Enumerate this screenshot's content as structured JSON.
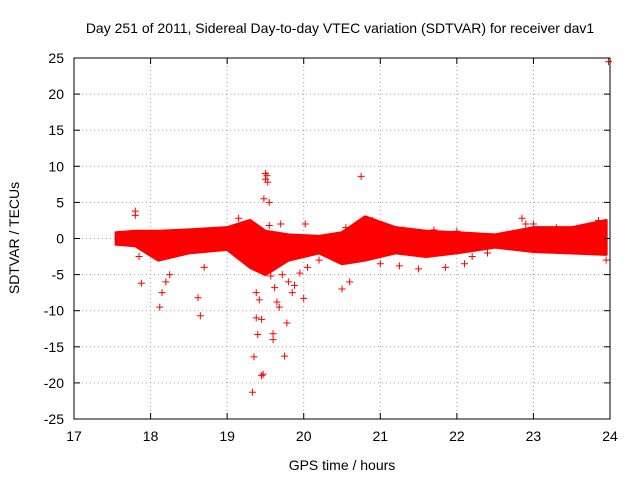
{
  "chart_data": {
    "type": "scatter",
    "title": "Day 251 of 2011, Sidereal Day-to-day VTEC variation (SDTVAR) for receiver dav1",
    "xlabel": "GPS time / hours",
    "ylabel": "SDTVAR / TECUs",
    "xlim": [
      17,
      24
    ],
    "ylim": [
      -25,
      25
    ],
    "xticks": [
      17,
      18,
      19,
      20,
      21,
      22,
      23,
      24
    ],
    "yticks": [
      -25,
      -20,
      -15,
      -10,
      -5,
      0,
      5,
      10,
      15,
      20,
      25
    ],
    "grid": true,
    "marker": "+",
    "series_color": "#ff0000",
    "band": {
      "x": [
        17.55,
        17.8,
        18.1,
        18.5,
        19.0,
        19.3,
        19.5,
        19.8,
        20.2,
        20.5,
        20.8,
        21.2,
        21.6,
        22.0,
        22.5,
        23.0,
        23.5,
        23.95
      ],
      "upper": [
        0.8,
        1.0,
        1.0,
        1.2,
        1.5,
        2.5,
        1.0,
        0.5,
        0.3,
        0.8,
        3.0,
        1.5,
        1.0,
        0.8,
        0.5,
        1.5,
        1.5,
        2.5
      ],
      "lower": [
        -0.8,
        -1.0,
        -3.0,
        -2.0,
        -1.5,
        -4.0,
        -5.0,
        -3.0,
        -2.0,
        -3.5,
        -3.0,
        -2.0,
        -2.5,
        -2.0,
        -1.2,
        -1.8,
        -2.0,
        -2.2
      ]
    },
    "points": [
      {
        "x": 17.8,
        "y": 3.8
      },
      {
        "x": 17.8,
        "y": 3.2
      },
      {
        "x": 17.85,
        "y": -2.5
      },
      {
        "x": 17.88,
        "y": -6.2
      },
      {
        "x": 18.12,
        "y": -9.5
      },
      {
        "x": 18.15,
        "y": -7.5
      },
      {
        "x": 18.2,
        "y": -6.0
      },
      {
        "x": 18.25,
        "y": -5.0
      },
      {
        "x": 18.62,
        "y": -8.2
      },
      {
        "x": 18.65,
        "y": -10.7
      },
      {
        "x": 18.7,
        "y": -4.0
      },
      {
        "x": 19.15,
        "y": 2.8
      },
      {
        "x": 19.33,
        "y": -21.3
      },
      {
        "x": 19.35,
        "y": -16.4
      },
      {
        "x": 19.38,
        "y": -11.0
      },
      {
        "x": 19.38,
        "y": -7.5
      },
      {
        "x": 19.4,
        "y": -13.3
      },
      {
        "x": 19.42,
        "y": -8.5
      },
      {
        "x": 19.45,
        "y": -11.2
      },
      {
        "x": 19.45,
        "y": -19.0
      },
      {
        "x": 19.47,
        "y": -18.8
      },
      {
        "x": 19.48,
        "y": 5.5
      },
      {
        "x": 19.5,
        "y": 9.0
      },
      {
        "x": 19.5,
        "y": 8.2
      },
      {
        "x": 19.52,
        "y": 8.7
      },
      {
        "x": 19.53,
        "y": 7.8
      },
      {
        "x": 19.55,
        "y": 5.0
      },
      {
        "x": 19.55,
        "y": 1.8
      },
      {
        "x": 19.57,
        "y": -5.2
      },
      {
        "x": 19.6,
        "y": -13.2
      },
      {
        "x": 19.6,
        "y": -14.0
      },
      {
        "x": 19.62,
        "y": -6.8
      },
      {
        "x": 19.65,
        "y": -3.5
      },
      {
        "x": 19.65,
        "y": -8.8
      },
      {
        "x": 19.68,
        "y": -9.5
      },
      {
        "x": 19.7,
        "y": 2.0
      },
      {
        "x": 19.72,
        "y": -5.0
      },
      {
        "x": 19.75,
        "y": -16.3
      },
      {
        "x": 19.78,
        "y": -11.7
      },
      {
        "x": 19.8,
        "y": -6.0
      },
      {
        "x": 19.85,
        "y": -7.5
      },
      {
        "x": 19.88,
        "y": -6.5
      },
      {
        "x": 19.95,
        "y": -4.8
      },
      {
        "x": 20.0,
        "y": -8.3
      },
      {
        "x": 20.02,
        "y": 2.0
      },
      {
        "x": 20.05,
        "y": -4.0
      },
      {
        "x": 20.2,
        "y": -3.0
      },
      {
        "x": 20.5,
        "y": -7.0
      },
      {
        "x": 20.55,
        "y": 1.5
      },
      {
        "x": 20.6,
        "y": -6.0
      },
      {
        "x": 20.75,
        "y": 8.6
      },
      {
        "x": 20.75,
        "y": -2.0
      },
      {
        "x": 20.9,
        "y": 2.5
      },
      {
        "x": 21.0,
        "y": -3.5
      },
      {
        "x": 21.25,
        "y": -3.8
      },
      {
        "x": 21.3,
        "y": 1.2
      },
      {
        "x": 21.5,
        "y": -4.2
      },
      {
        "x": 21.7,
        "y": 1.2
      },
      {
        "x": 21.85,
        "y": -4.0
      },
      {
        "x": 22.0,
        "y": 1.0
      },
      {
        "x": 22.1,
        "y": -3.5
      },
      {
        "x": 22.2,
        "y": -2.5
      },
      {
        "x": 22.4,
        "y": -2.0
      },
      {
        "x": 22.85,
        "y": 2.8
      },
      {
        "x": 22.9,
        "y": 2.0
      },
      {
        "x": 23.0,
        "y": 2.0
      },
      {
        "x": 23.3,
        "y": 1.5
      },
      {
        "x": 23.6,
        "y": 1.2
      },
      {
        "x": 23.85,
        "y": 2.5
      },
      {
        "x": 23.95,
        "y": -3.0
      },
      {
        "x": 23.98,
        "y": 24.5
      }
    ]
  }
}
